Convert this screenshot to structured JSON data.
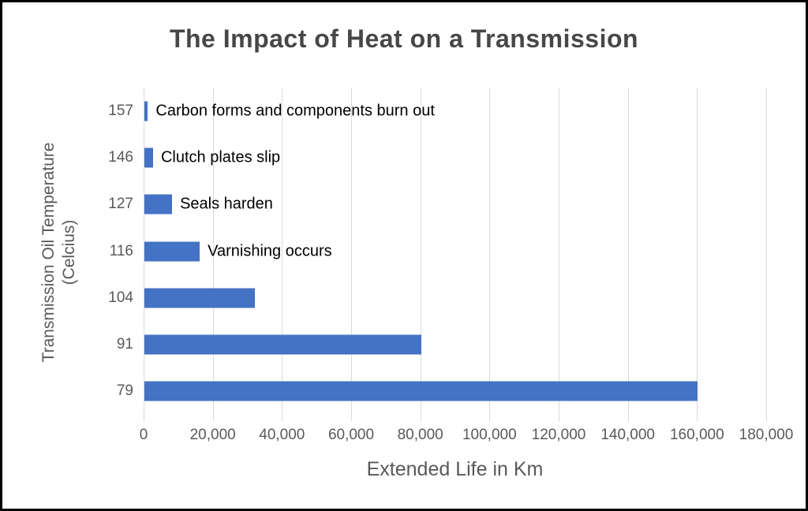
{
  "chart_data": {
    "type": "bar",
    "orientation": "horizontal",
    "title": "The Impact of Heat on a Transmission",
    "xlabel": "Extended Life in Km",
    "ylabel": "Transmission Oil Temperature (Celcius)",
    "ylabel_lines": [
      "Transmission Oil Temperature",
      "(Celcius)"
    ],
    "categories": [
      "157",
      "146",
      "127",
      "116",
      "104",
      "91",
      "79"
    ],
    "values": [
      1000,
      2500,
      8000,
      16000,
      32000,
      80000,
      160000
    ],
    "point_labels": [
      "Carbon forms and components burn out",
      "Clutch plates slip",
      "Seals harden",
      "Varnishing occurs",
      "",
      "",
      ""
    ],
    "xlim": [
      0,
      180000
    ],
    "x_tick_values": [
      0,
      20000,
      40000,
      60000,
      80000,
      100000,
      120000,
      140000,
      160000,
      180000
    ],
    "x_tick_labels": [
      "0",
      "20,000",
      "40,000",
      "60,000",
      "80,000",
      "100,000",
      "120,000",
      "140,000",
      "160,000",
      "180,000"
    ],
    "grid": true,
    "legend": false,
    "colors": {
      "bar": "#4472C4",
      "gridline": "#D9D9D9",
      "axis_text": "#595959",
      "title_text": "#474747",
      "point_label_text": "#000000",
      "background": "#FFFFFF",
      "border": "#000000"
    }
  }
}
